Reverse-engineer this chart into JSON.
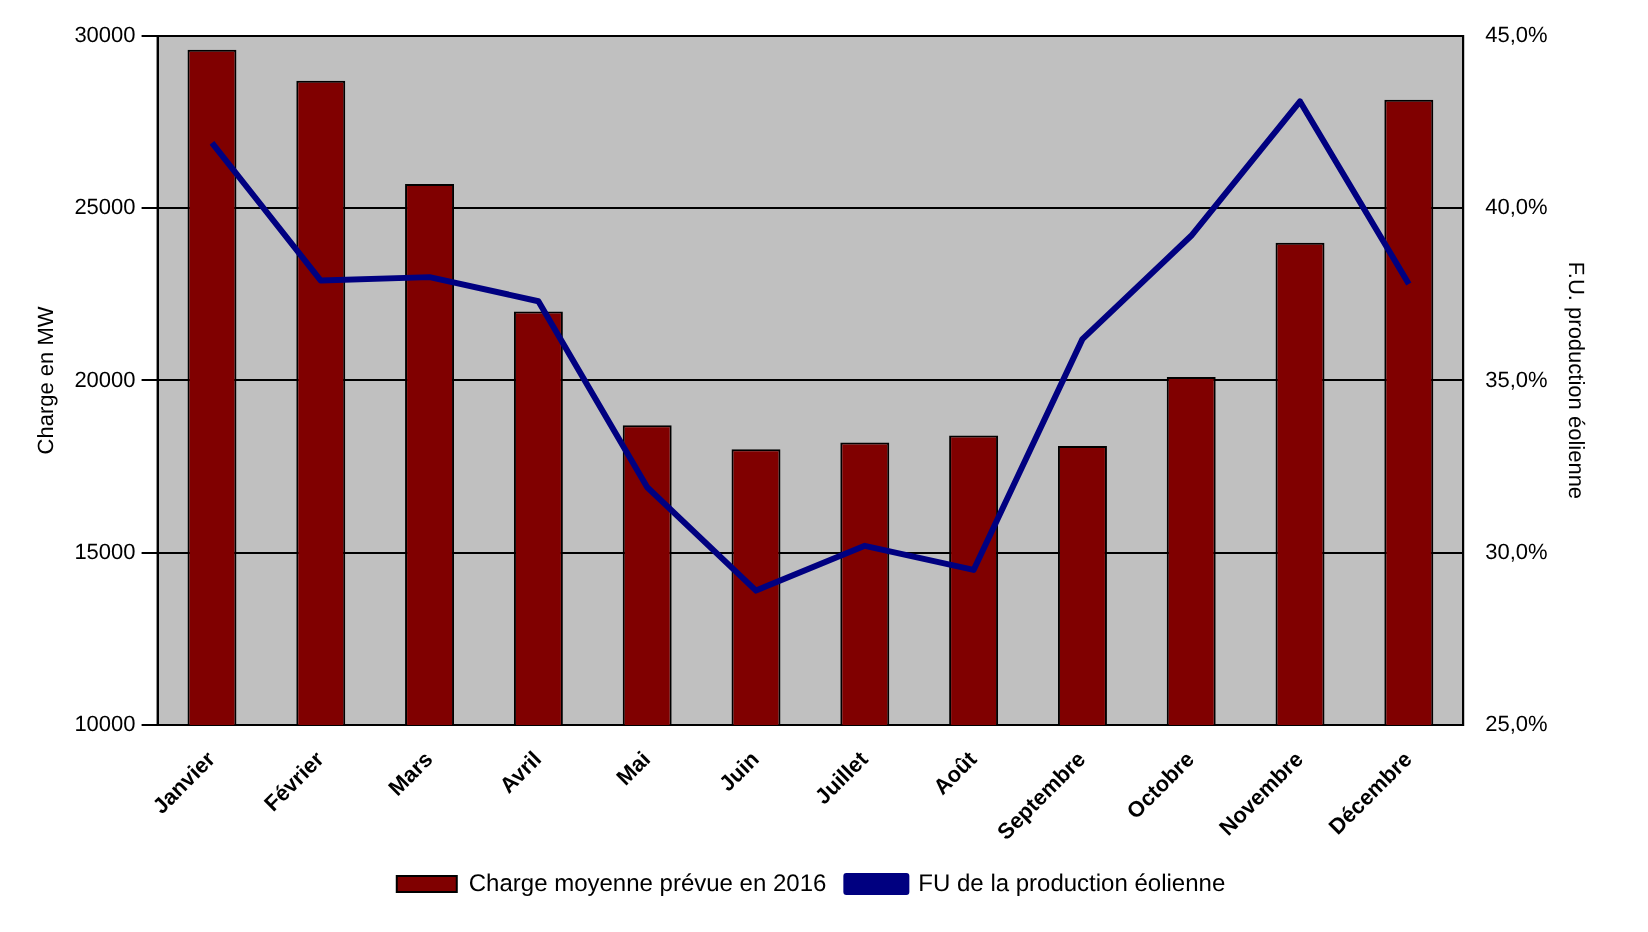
{
  "chart_data": {
    "type": "bar",
    "categories": [
      "Janvier",
      "Février",
      "Mars",
      "Avril",
      "Mai",
      "Juin",
      "Juillet",
      "Août",
      "Septembre",
      "Octobre",
      "Novembre",
      "Décembre"
    ],
    "series": [
      {
        "name": "Charge moyenne prévue en 2016",
        "color": "#800000",
        "values": [
          29600,
          28700,
          25700,
          22000,
          18700,
          18000,
          18200,
          18400,
          18100,
          20100,
          24000,
          28150
        ]
      },
      {
        "name": "FU de la production éolienne",
        "type": "line",
        "axis": "y2",
        "color": "#000080",
        "values": [
          41.9,
          37.9,
          38.0,
          37.3,
          31.9,
          28.9,
          30.2,
          29.5,
          36.2,
          39.2,
          43.1,
          37.8
        ]
      }
    ],
    "ylabel": "Charge en MW",
    "y2label": "F.U. production éolienne",
    "ylim": [
      10000,
      30000
    ],
    "yticks": [
      10000,
      15000,
      20000,
      25000,
      30000
    ],
    "y2lim": [
      25,
      45
    ],
    "y2ticks": [
      {
        "value": 25,
        "label": "25,0%"
      },
      {
        "value": 30,
        "label": "30,0%"
      },
      {
        "value": 35,
        "label": "35,0%"
      },
      {
        "value": 40,
        "label": "40,0%"
      },
      {
        "value": 45,
        "label": "45,0%"
      }
    ],
    "grid": "y",
    "legend": "bottom",
    "marker": "none"
  }
}
